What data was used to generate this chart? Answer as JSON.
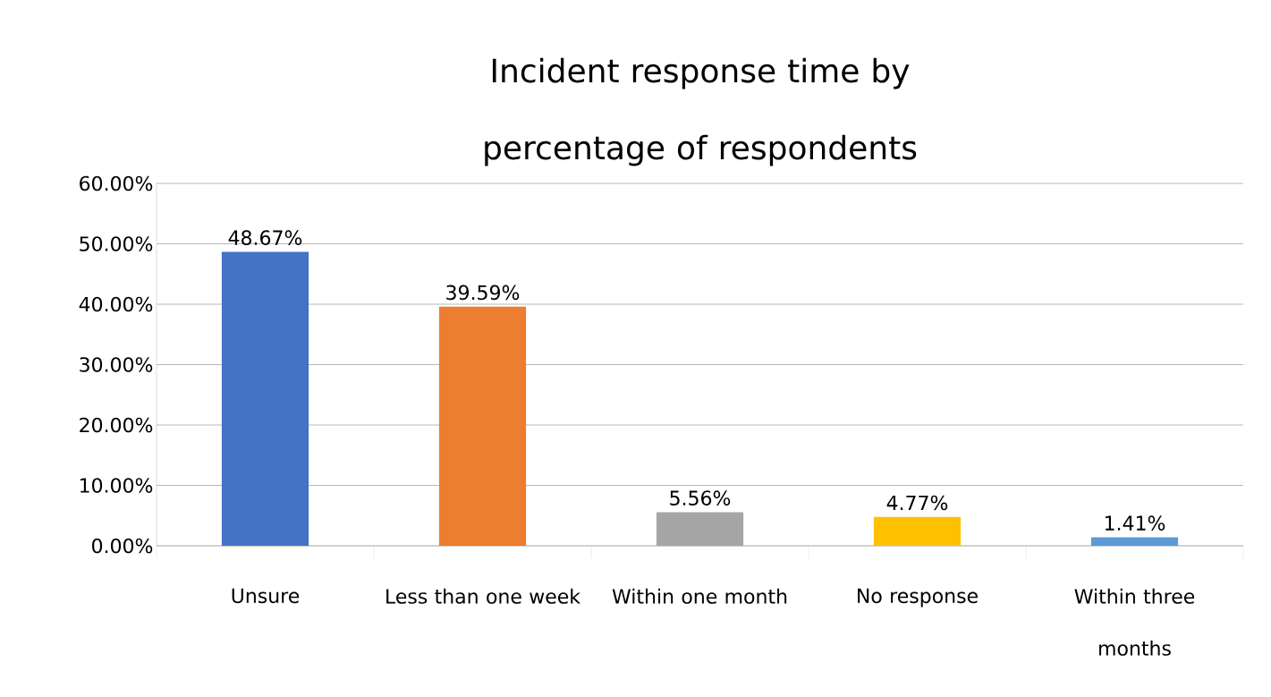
{
  "chart_data": {
    "type": "bar",
    "title": "Incident response time by percentage of respondents",
    "categories": [
      "Unsure",
      "Less than one week",
      "Within one month",
      "No response",
      "Within three months"
    ],
    "values": [
      48.67,
      39.59,
      5.56,
      4.77,
      1.41
    ],
    "value_labels": [
      "48.67%",
      "39.59%",
      "5.56%",
      "4.77%",
      "1.41%"
    ],
    "colors": [
      "#4472c4",
      "#ed7d31",
      "#a5a5a5",
      "#ffc000",
      "#5b9bd5"
    ],
    "ylim": [
      0,
      60
    ],
    "yticks": [
      {
        "value": 0,
        "label": "0.00%"
      },
      {
        "value": 10,
        "label": "10.00%"
      },
      {
        "value": 20,
        "label": "20.00%"
      },
      {
        "value": 30,
        "label": "30.00%"
      },
      {
        "value": 40,
        "label": "40.00%"
      },
      {
        "value": 50,
        "label": "50.00%"
      },
      {
        "value": 60,
        "label": "60.00%"
      }
    ],
    "grid": "y"
  }
}
